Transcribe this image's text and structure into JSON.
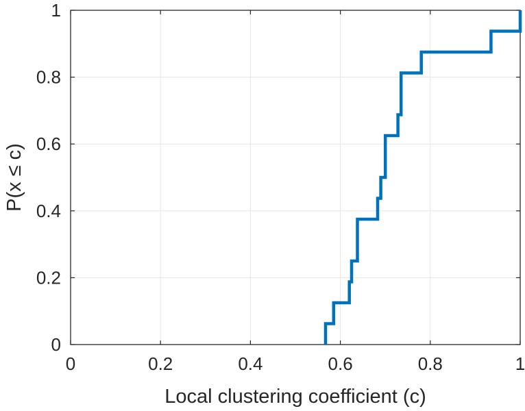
{
  "chart_data": {
    "type": "line",
    "style": "stairs",
    "xlabel": "Local clustering coefficient (c)",
    "ylabel": "P(x ≤ c)",
    "xlim": [
      0,
      1
    ],
    "ylim": [
      0,
      1
    ],
    "xticks": [
      0,
      0.2,
      0.4,
      0.6,
      0.8,
      1
    ],
    "xtick_labels": [
      "0",
      "0.2",
      "0.4",
      "0.6",
      "0.8",
      "1"
    ],
    "yticks": [
      0,
      0.2,
      0.4,
      0.6,
      0.8,
      1
    ],
    "ytick_labels": [
      "0",
      "0.2",
      "0.4",
      "0.6",
      "0.8",
      "1"
    ],
    "grid": true,
    "series": [
      {
        "color": "#0072BD",
        "points": [
          [
            0.567,
            0.0
          ],
          [
            0.567,
            0.0625
          ],
          [
            0.585,
            0.0625
          ],
          [
            0.585,
            0.125
          ],
          [
            0.62,
            0.125
          ],
          [
            0.62,
            0.1875
          ],
          [
            0.625,
            0.1875
          ],
          [
            0.625,
            0.25
          ],
          [
            0.638,
            0.25
          ],
          [
            0.638,
            0.375
          ],
          [
            0.683,
            0.375
          ],
          [
            0.683,
            0.4375
          ],
          [
            0.69,
            0.4375
          ],
          [
            0.69,
            0.5
          ],
          [
            0.7,
            0.5
          ],
          [
            0.7,
            0.625
          ],
          [
            0.728,
            0.625
          ],
          [
            0.728,
            0.6875
          ],
          [
            0.735,
            0.6875
          ],
          [
            0.735,
            0.8125
          ],
          [
            0.78,
            0.8125
          ],
          [
            0.78,
            0.875
          ],
          [
            0.935,
            0.875
          ],
          [
            0.935,
            0.9375
          ],
          [
            1.0,
            0.9375
          ],
          [
            1.0,
            1.0
          ]
        ]
      }
    ]
  }
}
